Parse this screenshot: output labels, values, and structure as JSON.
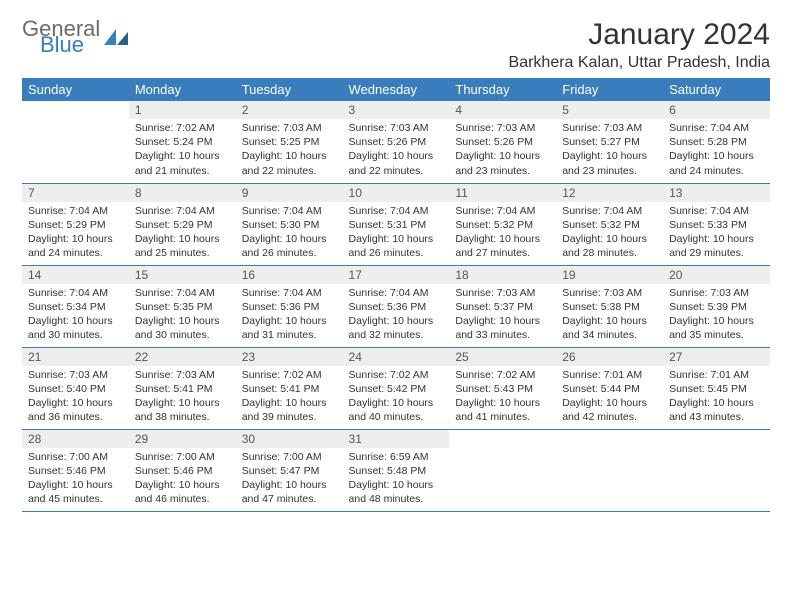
{
  "logo": {
    "part1": "General",
    "part2": "Blue",
    "color_gray": "#6b6b6b",
    "color_blue": "#3a7dbc"
  },
  "title": "January 2024",
  "location": "Barkhera Kalan, Uttar Pradesh, India",
  "header_bg": "#3a7dbc",
  "header_fg": "#ffffff",
  "daynum_bg": "#eeeeee",
  "border_color": "#3a7dbc",
  "text_color": "#333333",
  "weekdays": [
    "Sunday",
    "Monday",
    "Tuesday",
    "Wednesday",
    "Thursday",
    "Friday",
    "Saturday"
  ],
  "weeks": [
    [
      null,
      {
        "n": "1",
        "sr": "7:02 AM",
        "ss": "5:24 PM",
        "dl": "10 hours and 21 minutes."
      },
      {
        "n": "2",
        "sr": "7:03 AM",
        "ss": "5:25 PM",
        "dl": "10 hours and 22 minutes."
      },
      {
        "n": "3",
        "sr": "7:03 AM",
        "ss": "5:26 PM",
        "dl": "10 hours and 22 minutes."
      },
      {
        "n": "4",
        "sr": "7:03 AM",
        "ss": "5:26 PM",
        "dl": "10 hours and 23 minutes."
      },
      {
        "n": "5",
        "sr": "7:03 AM",
        "ss": "5:27 PM",
        "dl": "10 hours and 23 minutes."
      },
      {
        "n": "6",
        "sr": "7:04 AM",
        "ss": "5:28 PM",
        "dl": "10 hours and 24 minutes."
      }
    ],
    [
      {
        "n": "7",
        "sr": "7:04 AM",
        "ss": "5:29 PM",
        "dl": "10 hours and 24 minutes."
      },
      {
        "n": "8",
        "sr": "7:04 AM",
        "ss": "5:29 PM",
        "dl": "10 hours and 25 minutes."
      },
      {
        "n": "9",
        "sr": "7:04 AM",
        "ss": "5:30 PM",
        "dl": "10 hours and 26 minutes."
      },
      {
        "n": "10",
        "sr": "7:04 AM",
        "ss": "5:31 PM",
        "dl": "10 hours and 26 minutes."
      },
      {
        "n": "11",
        "sr": "7:04 AM",
        "ss": "5:32 PM",
        "dl": "10 hours and 27 minutes."
      },
      {
        "n": "12",
        "sr": "7:04 AM",
        "ss": "5:32 PM",
        "dl": "10 hours and 28 minutes."
      },
      {
        "n": "13",
        "sr": "7:04 AM",
        "ss": "5:33 PM",
        "dl": "10 hours and 29 minutes."
      }
    ],
    [
      {
        "n": "14",
        "sr": "7:04 AM",
        "ss": "5:34 PM",
        "dl": "10 hours and 30 minutes."
      },
      {
        "n": "15",
        "sr": "7:04 AM",
        "ss": "5:35 PM",
        "dl": "10 hours and 30 minutes."
      },
      {
        "n": "16",
        "sr": "7:04 AM",
        "ss": "5:36 PM",
        "dl": "10 hours and 31 minutes."
      },
      {
        "n": "17",
        "sr": "7:04 AM",
        "ss": "5:36 PM",
        "dl": "10 hours and 32 minutes."
      },
      {
        "n": "18",
        "sr": "7:03 AM",
        "ss": "5:37 PM",
        "dl": "10 hours and 33 minutes."
      },
      {
        "n": "19",
        "sr": "7:03 AM",
        "ss": "5:38 PM",
        "dl": "10 hours and 34 minutes."
      },
      {
        "n": "20",
        "sr": "7:03 AM",
        "ss": "5:39 PM",
        "dl": "10 hours and 35 minutes."
      }
    ],
    [
      {
        "n": "21",
        "sr": "7:03 AM",
        "ss": "5:40 PM",
        "dl": "10 hours and 36 minutes."
      },
      {
        "n": "22",
        "sr": "7:03 AM",
        "ss": "5:41 PM",
        "dl": "10 hours and 38 minutes."
      },
      {
        "n": "23",
        "sr": "7:02 AM",
        "ss": "5:41 PM",
        "dl": "10 hours and 39 minutes."
      },
      {
        "n": "24",
        "sr": "7:02 AM",
        "ss": "5:42 PM",
        "dl": "10 hours and 40 minutes."
      },
      {
        "n": "25",
        "sr": "7:02 AM",
        "ss": "5:43 PM",
        "dl": "10 hours and 41 minutes."
      },
      {
        "n": "26",
        "sr": "7:01 AM",
        "ss": "5:44 PM",
        "dl": "10 hours and 42 minutes."
      },
      {
        "n": "27",
        "sr": "7:01 AM",
        "ss": "5:45 PM",
        "dl": "10 hours and 43 minutes."
      }
    ],
    [
      {
        "n": "28",
        "sr": "7:00 AM",
        "ss": "5:46 PM",
        "dl": "10 hours and 45 minutes."
      },
      {
        "n": "29",
        "sr": "7:00 AM",
        "ss": "5:46 PM",
        "dl": "10 hours and 46 minutes."
      },
      {
        "n": "30",
        "sr": "7:00 AM",
        "ss": "5:47 PM",
        "dl": "10 hours and 47 minutes."
      },
      {
        "n": "31",
        "sr": "6:59 AM",
        "ss": "5:48 PM",
        "dl": "10 hours and 48 minutes."
      },
      null,
      null,
      null
    ]
  ],
  "labels": {
    "sunrise": "Sunrise:",
    "sunset": "Sunset:",
    "daylight": "Daylight:"
  }
}
